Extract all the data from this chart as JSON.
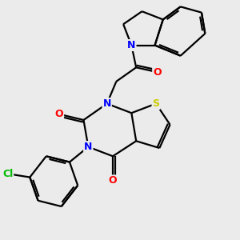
{
  "bg_color": "#ebebeb",
  "atom_colors": {
    "N": "#0000ff",
    "O": "#ff0000",
    "S": "#cccc00",
    "Cl": "#00bb00",
    "C": "#000000"
  },
  "bond_color": "#000000",
  "bond_width": 1.6,
  "font_size_atoms": 9
}
